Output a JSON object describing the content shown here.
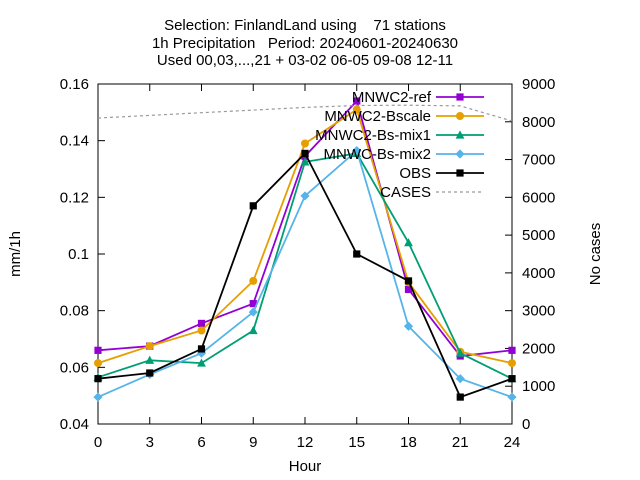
{
  "chart_data": {
    "type": "line",
    "title": [
      "Selection: FinlandLand using    71 stations",
      "1h Precipitation   Period: 20240601-20240630",
      "Used 00,03,...,21 + 03-02 06-05 09-08 12-11"
    ],
    "xlabel": "Hour",
    "ylabel": "mm/1h",
    "y2label": "No cases",
    "x": [
      0,
      3,
      6,
      9,
      12,
      15,
      18,
      21,
      24
    ],
    "xlim": [
      0,
      24
    ],
    "ylim": [
      0.04,
      0.16
    ],
    "y2lim": [
      0,
      9000
    ],
    "xticks": [
      "0",
      "3",
      "6",
      "9",
      "12",
      "15",
      "18",
      "21",
      "24"
    ],
    "yticks": [
      "0.04",
      "0.06",
      "0.08",
      "0.1",
      "0.12",
      "0.14",
      "0.16"
    ],
    "y2ticks": [
      "0",
      "1000",
      "2000",
      "3000",
      "4000",
      "5000",
      "6000",
      "7000",
      "8000",
      "9000"
    ],
    "grid": false,
    "legend_position": "top-right",
    "series": [
      {
        "name": "MNWC2-ref",
        "color": "#9400d3",
        "marker": "filled-square",
        "axis": "y1",
        "values": [
          0.066,
          0.0675,
          0.0755,
          0.0825,
          0.1345,
          0.154,
          0.0875,
          0.064,
          0.066
        ]
      },
      {
        "name": "MNWC2-Bscale",
        "color": "#e69f00",
        "marker": "filled-circle",
        "axis": "y1",
        "values": [
          0.0615,
          0.0675,
          0.073,
          0.0905,
          0.139,
          0.151,
          0.09,
          0.0655,
          0.0615
        ]
      },
      {
        "name": "MNWC2-Bs-mix1",
        "color": "#009e73",
        "marker": "filled-triangle",
        "axis": "y1",
        "values": [
          0.0565,
          0.0625,
          0.0615,
          0.073,
          0.1325,
          0.1355,
          0.104,
          0.065,
          0.056
        ]
      },
      {
        "name": "MNWC-Bs-mix2",
        "color": "#56b4e9",
        "marker": "filled-diamond",
        "axis": "y1",
        "values": [
          0.0495,
          0.0575,
          0.065,
          0.0795,
          0.1205,
          0.1365,
          0.0745,
          0.056,
          0.0495
        ]
      },
      {
        "name": "OBS",
        "color": "#000000",
        "marker": "filled-square",
        "axis": "y1",
        "values": [
          0.056,
          0.058,
          0.0665,
          0.117,
          0.1355,
          0.1,
          0.0905,
          0.0495,
          0.056
        ]
      },
      {
        "name": "CASES",
        "color": "#999999",
        "marker": "none",
        "dashed": true,
        "axis": "y2",
        "values": [
          8100,
          8170,
          8240,
          8310,
          8380,
          8430,
          8440,
          8420,
          8020
        ]
      }
    ]
  }
}
